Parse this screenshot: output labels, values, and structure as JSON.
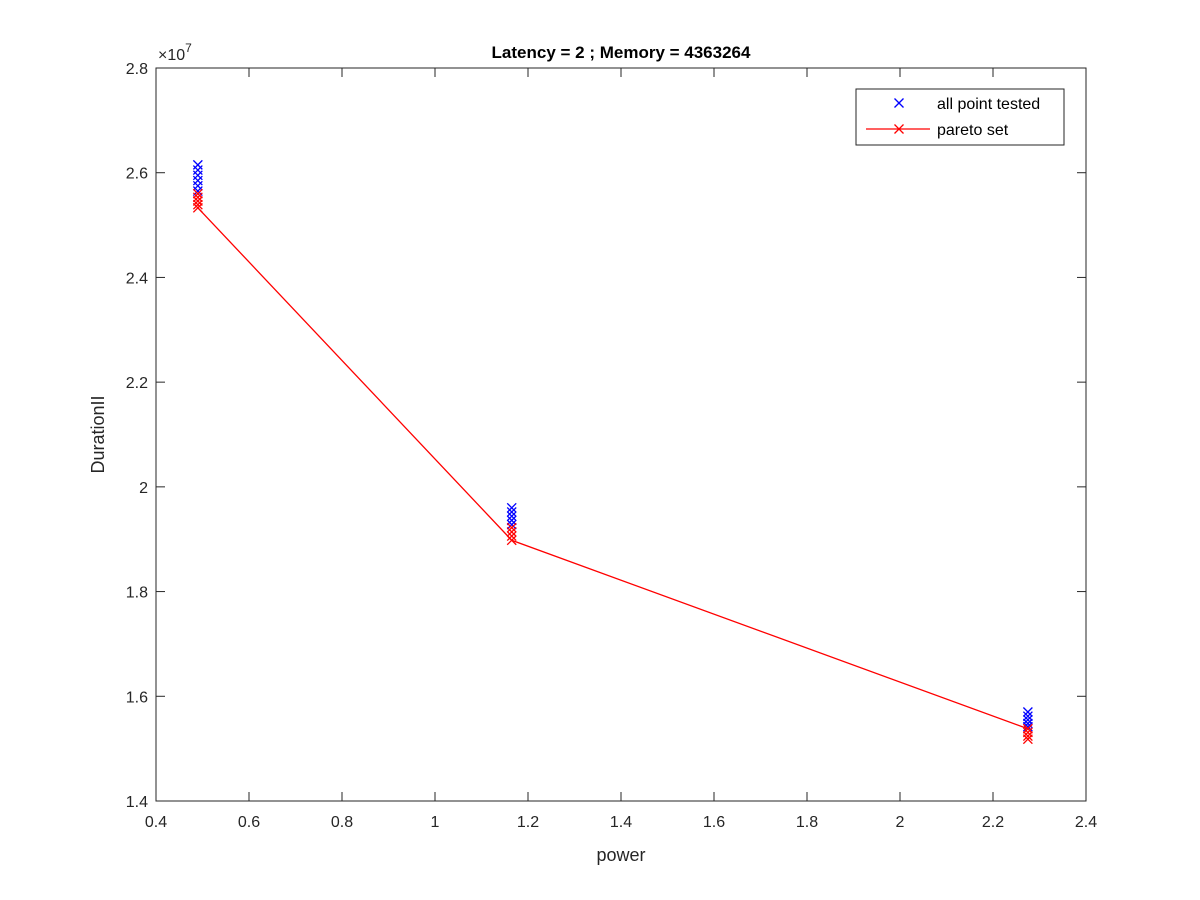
{
  "chart_data": {
    "type": "scatter",
    "title": "Latency = 2 ; Memory = 4363264",
    "xlabel": "power",
    "ylabel": "DurationII",
    "xlim": [
      0.4,
      2.4
    ],
    "ylim": [
      1.4,
      2.8
    ],
    "y_exponent_label": "×10",
    "y_exponent_power": "7",
    "xticks": [
      "0.4",
      "0.6",
      "0.8",
      "1",
      "1.2",
      "1.4",
      "1.6",
      "1.8",
      "2",
      "2.2",
      "2.4"
    ],
    "yticks": [
      "1.4",
      "1.6",
      "1.8",
      "2",
      "2.2",
      "2.4",
      "2.6",
      "2.8"
    ],
    "xtick_values": [
      0.4,
      0.6,
      0.8,
      1.0,
      1.2,
      1.4,
      1.6,
      1.8,
      2.0,
      2.2,
      2.4
    ],
    "ytick_values": [
      1.4,
      1.6,
      1.8,
      2.0,
      2.2,
      2.4,
      2.6,
      2.8
    ],
    "legend_position": "top-right",
    "grid": false,
    "series": [
      {
        "name": "all point tested",
        "color": "#0000ff",
        "marker": "x",
        "line": false,
        "points": [
          [
            0.49,
            2.615
          ],
          [
            0.49,
            2.605
          ],
          [
            0.49,
            2.595
          ],
          [
            0.49,
            2.585
          ],
          [
            0.49,
            2.575
          ],
          [
            0.49,
            2.565
          ],
          [
            1.165,
            1.96
          ],
          [
            1.165,
            1.952
          ],
          [
            1.165,
            1.944
          ],
          [
            1.165,
            1.936
          ],
          [
            1.165,
            1.928
          ],
          [
            2.275,
            1.57
          ],
          [
            2.275,
            1.562
          ],
          [
            2.275,
            1.555
          ],
          [
            2.275,
            1.548
          ],
          [
            2.275,
            1.542
          ]
        ]
      },
      {
        "name": "pareto set",
        "color": "#ff0000",
        "marker": "x",
        "line": true,
        "points": [
          [
            0.49,
            2.56
          ],
          [
            0.49,
            2.553
          ],
          [
            0.49,
            2.546
          ],
          [
            0.49,
            2.539
          ],
          [
            0.49,
            2.533
          ],
          [
            1.165,
            1.922
          ],
          [
            1.165,
            1.914
          ],
          [
            1.165,
            1.906
          ],
          [
            1.165,
            1.898
          ],
          [
            2.275,
            1.538
          ],
          [
            2.275,
            1.531
          ],
          [
            2.275,
            1.524
          ],
          [
            2.275,
            1.518
          ]
        ],
        "line_points": [
          [
            0.49,
            2.533
          ],
          [
            1.165,
            1.898
          ],
          [
            2.275,
            1.538
          ]
        ]
      }
    ]
  }
}
